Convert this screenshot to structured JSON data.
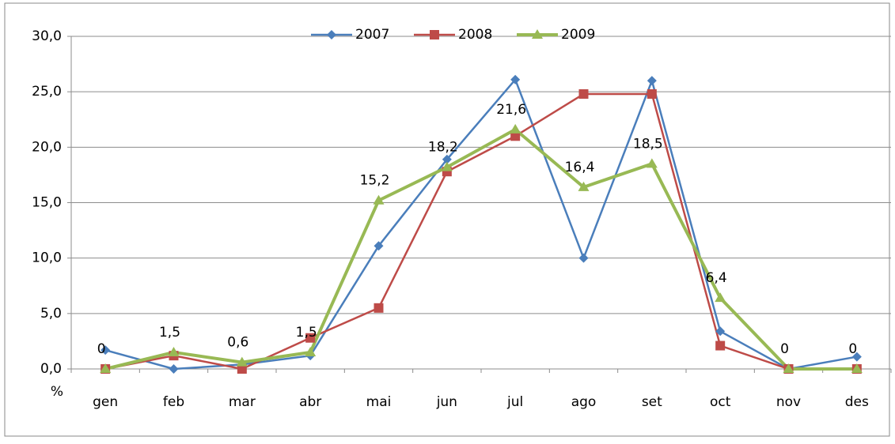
{
  "chart_data": {
    "type": "line",
    "y_axis_label": "%",
    "categories": [
      "gen",
      "feb",
      "mar",
      "abr",
      "mai",
      "jun",
      "jul",
      "ago",
      "set",
      "oct",
      "nov",
      "des"
    ],
    "series": [
      {
        "name": "2007",
        "color": "#4a7ebb",
        "marker": "diamond",
        "values": [
          1.7,
          0.0,
          0.4,
          1.2,
          11.1,
          18.9,
          26.1,
          10.0,
          26.0,
          3.4,
          0.0,
          1.1
        ]
      },
      {
        "name": "2008",
        "color": "#be4b48",
        "marker": "square",
        "values": [
          0.0,
          1.2,
          0.0,
          2.8,
          5.5,
          17.8,
          21.0,
          24.8,
          24.8,
          2.1,
          0.0,
          0.0
        ]
      },
      {
        "name": "2009",
        "color": "#98b954",
        "marker": "triangle",
        "values": [
          0,
          1.5,
          0.6,
          1.5,
          15.2,
          18.2,
          21.6,
          16.4,
          18.5,
          6.4,
          0,
          0
        ],
        "value_labels": [
          "0",
          "1,5",
          "0,6",
          "1,5",
          "15,2",
          "18,2",
          "21,6",
          "16,4",
          "18,5",
          "6,4",
          "0",
          "0"
        ]
      }
    ],
    "ylim": [
      0,
      30
    ],
    "yticks": [
      {
        "value": 0,
        "label": "0,0"
      },
      {
        "value": 5,
        "label": "5,0"
      },
      {
        "value": 10,
        "label": "10,0"
      },
      {
        "value": 15,
        "label": "15,0"
      },
      {
        "value": 20,
        "label": "20,0"
      },
      {
        "value": 25,
        "label": "25,0"
      },
      {
        "value": 30,
        "label": "30,0"
      }
    ],
    "grid": true,
    "legend": "top"
  }
}
